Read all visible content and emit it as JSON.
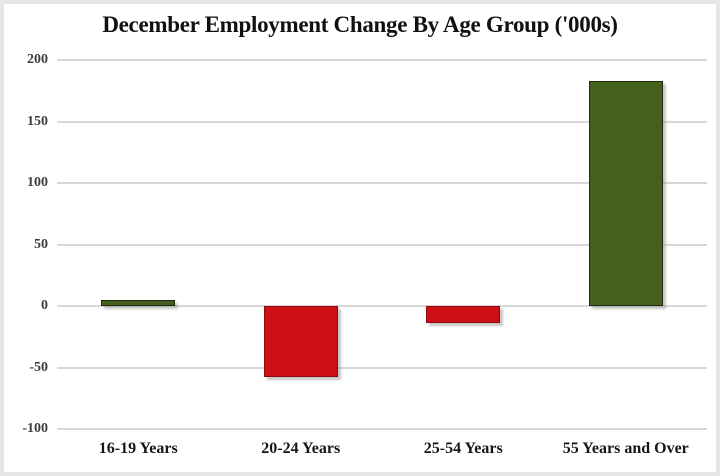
{
  "chart_data": {
    "type": "bar",
    "title": "December Employment Change By Age Group ('000s)",
    "categories": [
      "16-19 Years",
      "20-24 Years",
      "25-54 Years",
      "55 Years and Over"
    ],
    "values": [
      5,
      -58,
      -14,
      183
    ],
    "xlabel": "",
    "ylabel": "",
    "ylim": [
      -100,
      200
    ],
    "yticks": [
      200,
      150,
      100,
      50,
      0,
      -50,
      -100
    ],
    "legend": "none",
    "grid": "horizontal",
    "colors": {
      "positive_bar": "#44601F",
      "positive_border": "#1E2B0F",
      "negative_bar": "#CD1016",
      "negative_border": "#8F0A0D",
      "gridline": "#D8D8D8",
      "title_text": "#111111",
      "tick_text": "#3D3D3D",
      "background": "#FFFFFF",
      "frame": "#E6E6E6"
    }
  }
}
